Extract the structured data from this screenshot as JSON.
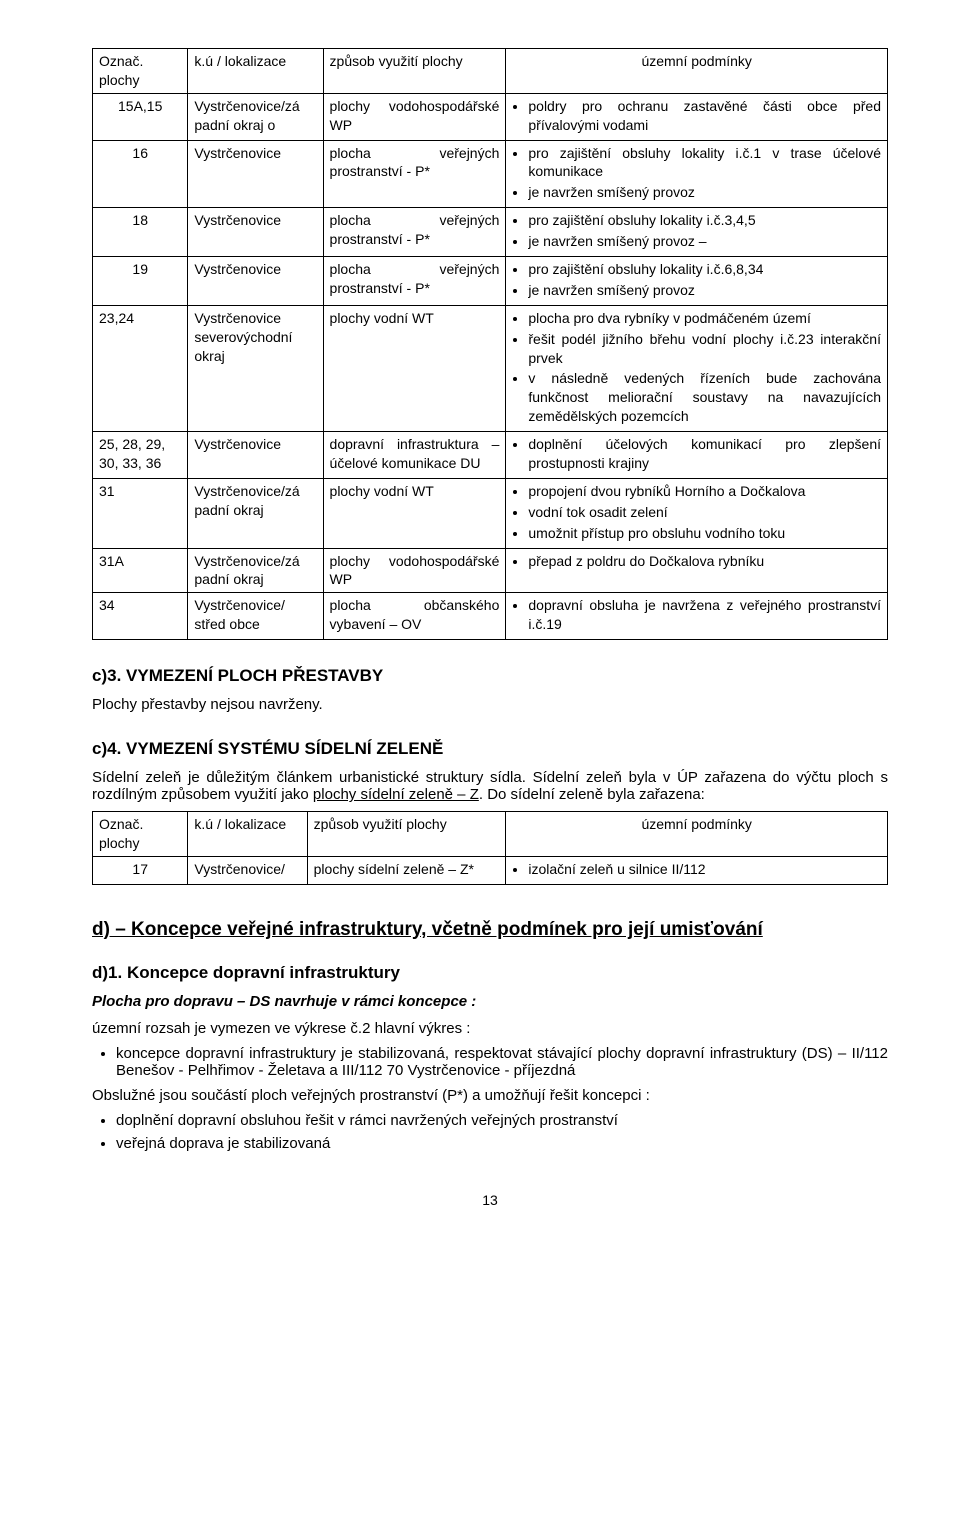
{
  "table1": {
    "headers": [
      "Označ. plochy",
      "k.ú / lokalizace",
      "způsob využití plochy",
      "územní podmínky"
    ],
    "rows": [
      {
        "id": "15A,15",
        "loc": "Vystrčenovice/zá padní okraj o",
        "use": "plochy vodohospodářské  WP",
        "cond": [
          "poldry pro ochranu zastavěné části obce před přívalovými vodami"
        ]
      },
      {
        "id": "16",
        "loc": "Vystrčenovice",
        "use": "plocha veřejných prostranství  - P*",
        "cond": [
          "pro zajištění obsluhy lokality i.č.1 v trase účelové komunikace",
          "je navržen smíšený provoz"
        ]
      },
      {
        "id": "18",
        "loc": "Vystrčenovice",
        "use": "plocha veřejných prostranství  - P*",
        "cond": [
          "pro zajištění obsluhy lokality i.č.3,4,5",
          "je navržen smíšený provoz –"
        ]
      },
      {
        "id": "19",
        "loc": "Vystrčenovice",
        "use": "plocha veřejných prostranství  - P*",
        "cond": [
          "pro zajištění obsluhy lokality i.č.6,8,34",
          "je navržen smíšený provoz"
        ]
      },
      {
        "id": "23,24",
        "loc": "Vystrčenovice severovýchodní okraj",
        "use": "plochy vodní WT",
        "cond": [
          "plocha pro dva rybníky v podmáčeném území",
          "řešit podél jižního břehu vodní plochy i.č.23 interakční prvek",
          "v následně vedených řízeních bude zachována funkčnost meliorační soustavy na navazujících zemědělských pozemcích"
        ]
      },
      {
        "id": "25, 28, 29, 30, 33, 36",
        "loc": "Vystrčenovice",
        "use": "dopravní infrastruktura – účelové komunikace DU",
        "cond": [
          "doplnění účelových komunikací pro zlepšení prostupnosti krajiny"
        ]
      },
      {
        "id": "31",
        "loc": "Vystrčenovice/zá padní okraj",
        "use": "plochy vodní WT",
        "cond": [
          "propojení dvou rybníků Horního a Dočkalova",
          "vodní tok osadit zelení",
          "umožnit přístup pro obsluhu vodního toku"
        ]
      },
      {
        "id": "31A",
        "loc": "Vystrčenovice/zá padní okraj",
        "use": "plochy vodohospodářské WP",
        "cond": [
          "přepad z poldru do Dočkalova rybníku"
        ]
      },
      {
        "id": "34",
        "loc": "Vystrčenovice/ střed obce",
        "use": "plocha občanského vybavení – OV",
        "cond": [
          "dopravní obsluha je navržena z veřejného prostranství i.č.19"
        ]
      }
    ]
  },
  "c3": {
    "title": "c)3. VYMEZENÍ PLOCH PŘESTAVBY",
    "text": "Plochy přestavby nejsou navrženy."
  },
  "c4": {
    "title": "c)4. VYMEZENÍ SYSTÉMU SÍDELNÍ ZELENĚ",
    "para": "Sídelní zeleň je důležitým článkem urbanistické struktury sídla. Sídelní zeleň byla v ÚP zařazena do výčtu ploch s rozdílným způsobem využití jako ",
    "para_u": "plochy sídelní zeleně – Z",
    "para2": ". Do sídelní zeleně byla zařazena:"
  },
  "table2": {
    "headers": [
      "Označ. plochy",
      "k.ú / lokalizace",
      "způsob využití plochy",
      "územní podmínky"
    ],
    "rows": [
      {
        "id": "17",
        "loc": "Vystrčenovice/",
        "use": "plochy sídelní zeleně – Z*",
        "cond": [
          "izolační zeleň u silnice II/112"
        ]
      }
    ]
  },
  "d": {
    "title": "d) – Koncepce veřejné infrastruktury, včetně podmínek pro její umisťování"
  },
  "d1": {
    "title": "d)1. Koncepce dopravní infrastruktury",
    "ital": "Plocha pro dopravu – DS navrhuje v rámci koncepce :",
    "line1": "územní rozsah je vymezen ve výkrese č.2 hlavní výkres :",
    "bul1": "koncepce dopravní infrastruktury je stabilizovaná, respektovat stávající plochy dopravní infrastruktury (DS) – II/112  Benešov - Pelhřimov - Želetava  a III/112 70    Vystrčenovice          - příjezdná",
    "line2": "Obslužné jsou součástí ploch veřejných prostranství (P*) a umožňují řešit koncepci :",
    "bul2": "doplnění dopravní obsluhou řešit v rámci navržených veřejných prostranství",
    "bul3": "veřejná doprava je stabilizovaná"
  },
  "pagenum": "13"
}
